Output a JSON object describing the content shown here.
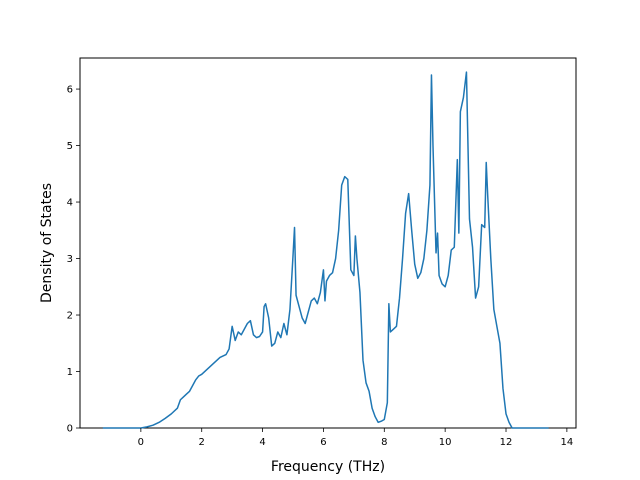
{
  "chart_data": {
    "type": "line",
    "title": "",
    "xlabel": "Frequency (THz)",
    "ylabel": "Density of States",
    "xlim": [
      -2.0,
      14.3
    ],
    "ylim": [
      0,
      6.55
    ],
    "xticks": [
      0,
      2,
      4,
      6,
      8,
      10,
      12,
      14
    ],
    "yticks": [
      0,
      1,
      2,
      3,
      4,
      5,
      6
    ],
    "grid": false,
    "legend": "none",
    "colors": {
      "line": "#1f77b4",
      "axes": "#000000",
      "background": "#ffffff"
    },
    "series": [
      {
        "x": [
          -1.25,
          -0.5,
          0.0,
          0.2,
          0.4,
          0.6,
          0.8,
          1.0,
          1.2,
          1.3,
          1.4,
          1.5,
          1.6,
          1.7,
          1.8,
          1.9,
          2.0,
          2.2,
          2.4,
          2.6,
          2.8,
          2.9,
          2.95,
          3.0,
          3.1,
          3.2,
          3.3,
          3.4,
          3.5,
          3.6,
          3.7,
          3.8,
          3.9,
          4.0,
          4.05,
          4.1,
          4.2,
          4.3,
          4.4,
          4.5,
          4.6,
          4.7,
          4.8,
          4.9,
          5.0,
          5.05,
          5.1,
          5.2,
          5.3,
          5.4,
          5.5,
          5.6,
          5.7,
          5.8,
          5.9,
          6.0,
          6.05,
          6.1,
          6.2,
          6.3,
          6.4,
          6.5,
          6.6,
          6.7,
          6.8,
          6.9,
          7.0,
          7.05,
          7.1,
          7.2,
          7.3,
          7.4,
          7.5,
          7.6,
          7.7,
          7.8,
          7.9,
          8.0,
          8.1,
          8.15,
          8.2,
          8.3,
          8.4,
          8.5,
          8.6,
          8.7,
          8.8,
          8.9,
          9.0,
          9.1,
          9.2,
          9.3,
          9.4,
          9.5,
          9.55,
          9.6,
          9.7,
          9.75,
          9.8,
          9.9,
          10.0,
          10.1,
          10.2,
          10.3,
          10.4,
          10.45,
          10.5,
          10.6,
          10.7,
          10.8,
          10.9,
          11.0,
          11.1,
          11.2,
          11.3,
          11.35,
          11.4,
          11.5,
          11.6,
          11.7,
          11.8,
          11.9,
          12.0,
          12.1,
          12.2,
          12.4,
          12.8,
          13.4
        ],
        "y": [
          0,
          0,
          0,
          0.02,
          0.05,
          0.1,
          0.17,
          0.25,
          0.35,
          0.5,
          0.55,
          0.6,
          0.65,
          0.75,
          0.85,
          0.92,
          0.95,
          1.05,
          1.15,
          1.25,
          1.3,
          1.4,
          1.6,
          1.8,
          1.55,
          1.7,
          1.65,
          1.75,
          1.85,
          1.9,
          1.65,
          1.6,
          1.62,
          1.7,
          2.15,
          2.2,
          1.95,
          1.45,
          1.5,
          1.7,
          1.6,
          1.85,
          1.65,
          2.1,
          3.05,
          3.55,
          2.35,
          2.15,
          1.95,
          1.85,
          2.05,
          2.25,
          2.3,
          2.2,
          2.4,
          2.8,
          2.25,
          2.6,
          2.7,
          2.75,
          3.0,
          3.5,
          4.3,
          4.45,
          4.4,
          2.8,
          2.7,
          3.4,
          3.0,
          2.4,
          1.2,
          0.8,
          0.65,
          0.35,
          0.2,
          0.1,
          0.12,
          0.15,
          0.45,
          2.2,
          1.7,
          1.75,
          1.8,
          2.3,
          3.0,
          3.8,
          4.15,
          3.5,
          2.9,
          2.65,
          2.75,
          3.0,
          3.5,
          4.3,
          6.25,
          5.0,
          3.1,
          3.45,
          2.7,
          2.55,
          2.5,
          2.7,
          3.15,
          3.2,
          4.75,
          3.45,
          5.6,
          5.85,
          6.3,
          3.7,
          3.2,
          2.3,
          2.5,
          3.6,
          3.55,
          4.7,
          4.1,
          3.0,
          2.1,
          1.8,
          1.5,
          0.7,
          0.25,
          0.1,
          0,
          0,
          0,
          0
        ]
      }
    ]
  }
}
